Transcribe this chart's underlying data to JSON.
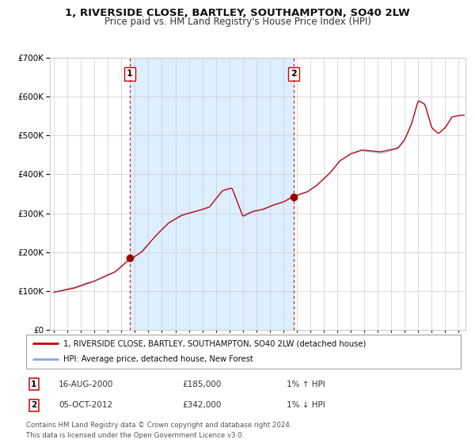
{
  "title1": "1, RIVERSIDE CLOSE, BARTLEY, SOUTHAMPTON, SO40 2LW",
  "title2": "Price paid vs. HM Land Registry's House Price Index (HPI)",
  "legend1": "1, RIVERSIDE CLOSE, BARTLEY, SOUTHAMPTON, SO40 2LW (detached house)",
  "legend2": "HPI: Average price, detached house, New Forest",
  "transaction1_date": "16-AUG-2000",
  "transaction1_price": "£185,000",
  "transaction1_hpi": "1% ↑ HPI",
  "transaction1_x": 2000.62,
  "transaction1_y": 185000,
  "transaction2_date": "05-OCT-2012",
  "transaction2_price": "£342,000",
  "transaction2_hpi": "1% ↓ HPI",
  "transaction2_x": 2012.76,
  "transaction2_y": 342000,
  "vline1_x": 2000.62,
  "vline2_x": 2012.76,
  "shade_start": 2000.62,
  "shade_end": 2012.76,
  "hpi_line_color": "#88aadd",
  "price_line_color": "#cc0000",
  "dot_color": "#990000",
  "shade_color": "#ddeeff",
  "vline_color": "#cc0000",
  "grid_color": "#cccccc",
  "bg_color": "#ffffff",
  "footnote": "Contains HM Land Registry data © Crown copyright and database right 2024.\nThis data is licensed under the Open Government Licence v3.0.",
  "ylim": [
    0,
    700000
  ],
  "xlim_start": 1994.7,
  "xlim_end": 2025.5,
  "anchors_t": [
    1995.0,
    1996.5,
    1998.0,
    1999.5,
    2000.5,
    2001.5,
    2002.5,
    2003.5,
    2004.5,
    2005.5,
    2006.5,
    2007.5,
    2008.2,
    2009.0,
    2009.8,
    2010.5,
    2011.2,
    2012.0,
    2012.7,
    2013.2,
    2013.8,
    2014.5,
    2015.5,
    2016.2,
    2017.0,
    2017.8,
    2018.5,
    2019.2,
    2019.8,
    2020.5,
    2021.0,
    2021.5,
    2022.0,
    2022.5,
    2023.0,
    2023.5,
    2024.0,
    2024.5,
    2025.2
  ],
  "anchors_v": [
    97000,
    108000,
    125000,
    148000,
    178000,
    200000,
    240000,
    275000,
    295000,
    305000,
    315000,
    358000,
    365000,
    292000,
    305000,
    310000,
    320000,
    328000,
    342000,
    348000,
    355000,
    372000,
    405000,
    435000,
    453000,
    462000,
    460000,
    458000,
    462000,
    468000,
    490000,
    530000,
    590000,
    580000,
    520000,
    505000,
    520000,
    548000,
    552000
  ]
}
